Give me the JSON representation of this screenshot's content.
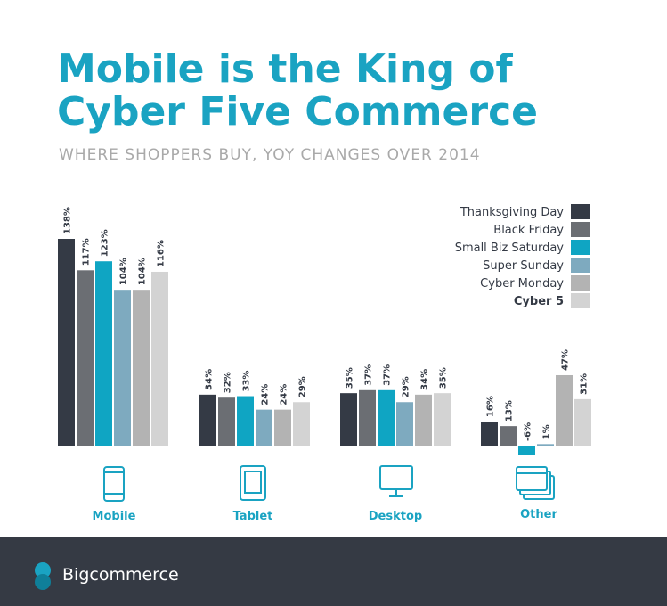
{
  "chart_data": {
    "type": "bar",
    "title": [
      "Mobile is the King of",
      "Cyber Five Commerce"
    ],
    "subtitle": "WHERE SHOPPERS BUY, YOY CHANGES OVER 2014",
    "categories": [
      "Mobile",
      "Tablet",
      "Desktop",
      "Other"
    ],
    "series": [
      {
        "name": "Thanksgiving Day",
        "color": "#343a45",
        "values": [
          138,
          34,
          35,
          16
        ],
        "value_labels": [
          "138%",
          "34%",
          "35%",
          "16%"
        ]
      },
      {
        "name": "Black Friday",
        "color": "#6b6e73",
        "values": [
          117,
          32,
          37,
          13
        ],
        "value_labels": [
          "117%",
          "32%",
          "37%",
          "13%"
        ]
      },
      {
        "name": "Small Biz Saturday",
        "color": "#0fa5c3",
        "values": [
          123,
          33,
          37,
          -6
        ],
        "value_labels": [
          "123%",
          "33%",
          "37%",
          "-6%"
        ]
      },
      {
        "name": "Super Sunday",
        "color": "#7eaabf",
        "values": [
          104,
          24,
          29,
          1
        ],
        "value_labels": [
          "104%",
          "24%",
          "29%",
          "1%"
        ]
      },
      {
        "name": "Cyber Monday",
        "color": "#b3b3b3",
        "values": [
          104,
          24,
          34,
          47
        ],
        "value_labels": [
          "104%",
          "24%",
          "34%",
          "47%"
        ]
      },
      {
        "name": "Cyber 5",
        "color": "#d3d3d3",
        "values": [
          116,
          29,
          35,
          31
        ],
        "value_labels": [
          "116%",
          "29%",
          "35%",
          "31%"
        ]
      }
    ],
    "legend": "top-right"
  },
  "footer": {
    "brand": "Bigcommerce"
  }
}
